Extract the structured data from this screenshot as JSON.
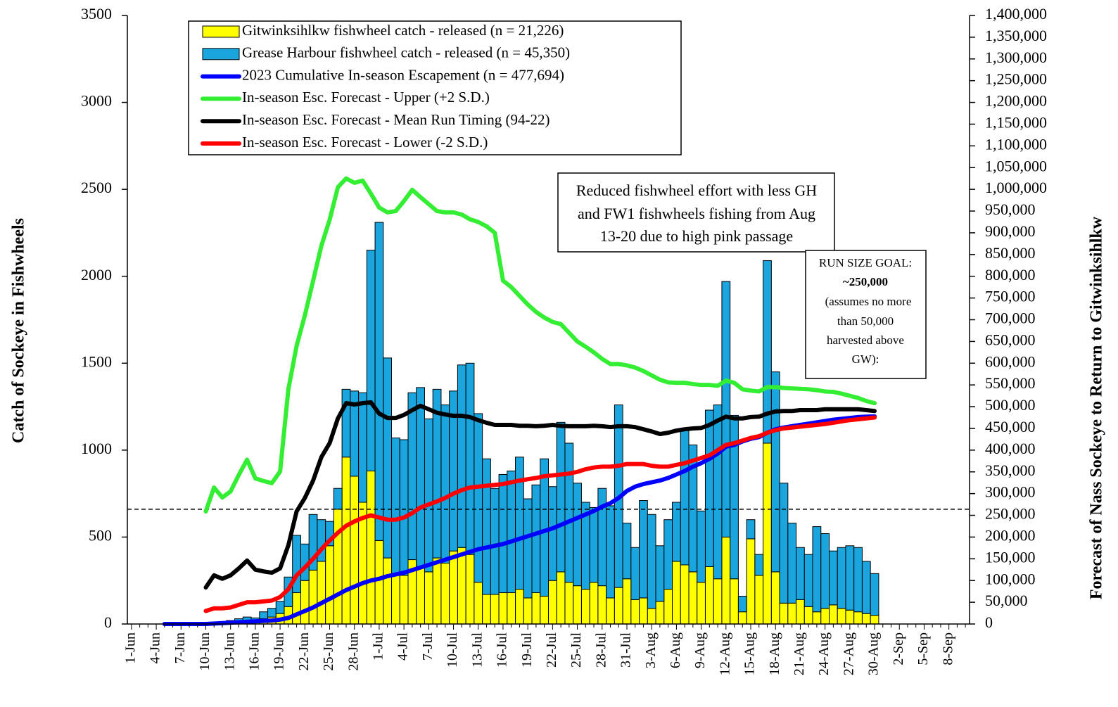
{
  "chart_data": {
    "type": "bar",
    "y_title": "Catch of Sockeye in Fishwheels",
    "y2_title": "Forecast of Nass Sockeye to Return to Gitwinksihlkw",
    "categories": [
      "1-Jun",
      null,
      null,
      "4-Jun",
      null,
      null,
      "7-Jun",
      null,
      null,
      "10-Jun",
      null,
      null,
      "13-Jun",
      null,
      null,
      "16-Jun",
      null,
      null,
      "19-Jun",
      null,
      null,
      "22-Jun",
      null,
      null,
      "25-Jun",
      null,
      null,
      "28-Jun",
      null,
      null,
      "1-Jul",
      null,
      null,
      "4-Jul",
      null,
      null,
      "7-Jul",
      null,
      null,
      "10-Jul",
      null,
      null,
      "13-Jul",
      null,
      null,
      "16-Jul",
      null,
      null,
      "19-Jul",
      null,
      null,
      "22-Jul",
      null,
      null,
      "25-Jul",
      null,
      null,
      "28-Jul",
      null,
      null,
      "31-Jul",
      null,
      null,
      "3-Aug",
      null,
      null,
      "6-Aug",
      null,
      null,
      "9-Aug",
      null,
      null,
      "12-Aug",
      null,
      null,
      "15-Aug",
      null,
      null,
      "18-Aug",
      null,
      null,
      "21-Aug",
      null,
      null,
      "24-Aug",
      null,
      null,
      "27-Aug",
      null,
      null,
      "30-Aug",
      null,
      null,
      "2-Sep",
      null,
      null,
      "5-Sep",
      null,
      null,
      "8-Sep",
      null,
      null
    ],
    "ylim": [
      0,
      3500
    ],
    "yticks": [
      0,
      500,
      1000,
      1500,
      2000,
      2500,
      3000,
      3500
    ],
    "y2lim": [
      0,
      1400000
    ],
    "y2ticks": [
      0,
      {
        "value": 50000,
        "label": "50,000"
      },
      {
        "value": 100000,
        "label": "100,000"
      },
      {
        "value": 150000,
        "label": "150,000"
      },
      {
        "value": 200000,
        "label": "200,000"
      },
      {
        "value": 250000,
        "label": "250,000"
      },
      {
        "value": 300000,
        "label": "300,000"
      },
      {
        "value": 350000,
        "label": "350,000"
      },
      {
        "value": 400000,
        "label": "400,000"
      },
      {
        "value": 450000,
        "label": "450,000"
      },
      {
        "value": 500000,
        "label": "500,000"
      },
      {
        "value": 550000,
        "label": "550,000"
      },
      {
        "value": 600000,
        "label": "600,000"
      },
      {
        "value": 650000,
        "label": "650,000"
      },
      {
        "value": 700000,
        "label": "700,000"
      },
      {
        "value": 750000,
        "label": "750,000"
      },
      {
        "value": 800000,
        "label": "800,000"
      },
      {
        "value": 850000,
        "label": "850,000"
      },
      {
        "value": 900000,
        "label": "900,000"
      },
      {
        "value": 950000,
        "label": "950,000"
      },
      {
        "value": 1000000,
        "label": "1,000,000"
      },
      {
        "value": 1050000,
        "label": "1,050,000"
      },
      {
        "value": 1100000,
        "label": "1,100,000"
      },
      {
        "value": 1150000,
        "label": "1,150,000"
      },
      {
        "value": 1200000,
        "label": "1,200,000"
      },
      {
        "value": 1250000,
        "label": "1,250,000"
      },
      {
        "value": 1300000,
        "label": "1,300,000"
      },
      {
        "value": 1350000,
        "label": "1,350,000"
      },
      {
        "value": 1400000,
        "label": "1,400,000"
      }
    ],
    "grid": false,
    "series": [
      {
        "name": "Gitwinksihlkw fishwheel catch - released (n = 21,226)",
        "type": "bar",
        "color": "#ffff00",
        "values": [
          null,
          null,
          null,
          null,
          null,
          null,
          null,
          null,
          null,
          null,
          3,
          5,
          10,
          15,
          20,
          15,
          30,
          40,
          60,
          100,
          180,
          250,
          310,
          360,
          450,
          660,
          960,
          850,
          700,
          880,
          480,
          380,
          280,
          280,
          370,
          330,
          300,
          380,
          350,
          420,
          440,
          400,
          240,
          170,
          170,
          180,
          180,
          200,
          150,
          180,
          160,
          250,
          300,
          240,
          220,
          200,
          240,
          220,
          150,
          210,
          260,
          140,
          150,
          90,
          130,
          200,
          360,
          340,
          300,
          240,
          330,
          260,
          500,
          260,
          70,
          490,
          280,
          1040,
          300,
          120,
          120,
          140,
          100,
          70,
          90,
          110,
          90,
          80,
          70,
          60,
          50,
          null,
          null,
          null,
          null,
          null,
          null,
          null,
          null,
          null,
          null,
          null
        ]
      },
      {
        "name": "Grease Harbour fishwheel catch - released (n = 45,350)",
        "type": "bar",
        "color": "#1aa5de",
        "values": [
          null,
          null,
          null,
          null,
          null,
          null,
          null,
          null,
          null,
          null,
          2,
          5,
          10,
          15,
          20,
          20,
          40,
          50,
          70,
          170,
          330,
          210,
          320,
          240,
          140,
          120,
          390,
          490,
          630,
          1270,
          1830,
          1150,
          790,
          780,
          960,
          1030,
          880,
          970,
          910,
          920,
          1050,
          1100,
          970,
          780,
          610,
          680,
          700,
          760,
          570,
          620,
          790,
          540,
          860,
          800,
          590,
          500,
          430,
          560,
          530,
          1050,
          320,
          300,
          560,
          540,
          320,
          400,
          340,
          780,
          730,
          410,
          900,
          1000,
          1470,
          940,
          90,
          110,
          120,
          1050,
          1150,
          690,
          460,
          300,
          300,
          490,
          430,
          310,
          350,
          370,
          370,
          300,
          240,
          null,
          null,
          null,
          null,
          null,
          null,
          null,
          null,
          null,
          null,
          null
        ]
      },
      {
        "name": "2023 Cumulative In-season Escapement (n = 477,694)",
        "type": "line",
        "axis": "y2",
        "color": "#0000ff",
        "values": [
          null,
          null,
          null,
          null,
          0,
          0,
          0,
          0,
          0,
          0,
          1000,
          2000,
          3000,
          4000,
          5000,
          6000,
          7000,
          8000,
          10000,
          14000,
          22000,
          30000,
          38000,
          48000,
          58000,
          68000,
          78000,
          86000,
          94000,
          100000,
          104000,
          110000,
          114000,
          118000,
          124000,
          130000,
          136000,
          142000,
          148000,
          154000,
          160000,
          166000,
          172000,
          176000,
          180000,
          184000,
          190000,
          196000,
          202000,
          208000,
          214000,
          220000,
          228000,
          236000,
          244000,
          252000,
          260000,
          270000,
          278000,
          290000,
          306000,
          316000,
          322000,
          326000,
          330000,
          336000,
          344000,
          352000,
          362000,
          370000,
          380000,
          392000,
          408000,
          412000,
          420000,
          426000,
          430000,
          440000,
          448000,
          452000,
          455000,
          458000,
          461000,
          464000,
          467000,
          470000,
          472000,
          474000,
          476000,
          477000,
          477694,
          null,
          null,
          null,
          null,
          null,
          null,
          null,
          null,
          null,
          null,
          null
        ]
      },
      {
        "name": "In-season Esc. Forecast - Upper (+2 S.D.)",
        "type": "line",
        "axis": "y2",
        "color": "#33ee33",
        "values": [
          null,
          null,
          null,
          null,
          null,
          null,
          null,
          null,
          null,
          259000,
          314000,
          291000,
          305000,
          343000,
          378000,
          335000,
          329000,
          324000,
          351000,
          540000,
          640000,
          710000,
          790000,
          870000,
          930000,
          1005000,
          1025000,
          1015000,
          1020000,
          990000,
          958000,
          947000,
          950000,
          973000,
          999000,
          982000,
          966000,
          950000,
          947000,
          947000,
          942000,
          931000,
          925000,
          915000,
          900000,
          790000,
          775000,
          755000,
          735000,
          718000,
          705000,
          695000,
          690000,
          670000,
          650000,
          638000,
          625000,
          610000,
          598000,
          598000,
          595000,
          590000,
          582000,
          572000,
          562000,
          556000,
          555000,
          555000,
          552000,
          550000,
          550000,
          548000,
          560000,
          555000,
          540000,
          537000,
          535000,
          545000,
          545000,
          543000,
          542000,
          541000,
          540000,
          538000,
          535000,
          534000,
          530000,
          525000,
          520000,
          513000,
          508000,
          null,
          null,
          null,
          null,
          null,
          null,
          null,
          null,
          null,
          null,
          null
        ]
      },
      {
        "name": "In-season Esc. Forecast - Mean Run Timing (94-22)",
        "type": "line",
        "axis": "y2",
        "color": "#000000",
        "values": [
          null,
          null,
          null,
          null,
          null,
          null,
          null,
          null,
          null,
          84000,
          112000,
          104000,
          112000,
          128000,
          146000,
          125000,
          121000,
          118000,
          128000,
          181000,
          259000,
          290000,
          330000,
          384000,
          416000,
          473000,
          508000,
          505000,
          508000,
          510000,
          484000,
          474000,
          474000,
          481000,
          492000,
          502000,
          494000,
          486000,
          482000,
          479000,
          479000,
          476000,
          469000,
          463000,
          458000,
          458000,
          458000,
          456000,
          456000,
          455000,
          456000,
          458000,
          456000,
          455000,
          455000,
          455000,
          456000,
          455000,
          453000,
          455000,
          455000,
          453000,
          448000,
          443000,
          437000,
          440000,
          445000,
          448000,
          450000,
          451000,
          458000,
          468000,
          477000,
          473000,
          473000,
          476000,
          477000,
          484000,
          489000,
          490000,
          490000,
          492000,
          492000,
          492000,
          494000,
          494000,
          494000,
          494000,
          494000,
          492000,
          490000,
          null,
          null,
          null,
          null,
          null,
          null,
          null,
          null,
          null,
          null,
          null
        ]
      },
      {
        "name": "In-season Esc. Forecast - Lower (-2 S.D.)",
        "type": "line",
        "axis": "y2",
        "color": "#ff0000",
        "values": [
          null,
          null,
          null,
          null,
          null,
          null,
          null,
          null,
          null,
          30000,
          36000,
          36000,
          38000,
          44000,
          50000,
          50000,
          52000,
          54000,
          62000,
          80000,
          112000,
          130000,
          150000,
          172000,
          192000,
          210000,
          226000,
          236000,
          244000,
          250000,
          245000,
          240000,
          240000,
          245000,
          255000,
          268000,
          275000,
          282000,
          290000,
          300000,
          308000,
          314000,
          316000,
          318000,
          320000,
          322000,
          326000,
          330000,
          333000,
          336000,
          340000,
          342000,
          344000,
          346000,
          350000,
          356000,
          360000,
          362000,
          362000,
          364000,
          368000,
          368000,
          368000,
          364000,
          362000,
          362000,
          366000,
          370000,
          376000,
          382000,
          388000,
          400000,
          412000,
          416000,
          422000,
          428000,
          432000,
          440000,
          446000,
          450000,
          452000,
          454000,
          456000,
          458000,
          460000,
          463000,
          466000,
          469000,
          471000,
          473000,
          475000,
          null,
          null,
          null,
          null,
          null,
          null,
          null,
          null,
          null,
          null,
          null
        ]
      }
    ],
    "goal_line": {
      "axis": "y2",
      "value": 264000,
      "style": "dashed"
    },
    "annotations": [
      {
        "lines": [
          "Reduced fishwheel effort with less GH",
          "and FW1 fishwheels fishing from Aug",
          "13-20 due to high pink passage"
        ]
      },
      {
        "lines": [
          "RUN SIZE GOAL:",
          "~250,000",
          "(assumes no more",
          "than 50,000",
          "harvested above",
          "GW):"
        ]
      }
    ]
  }
}
